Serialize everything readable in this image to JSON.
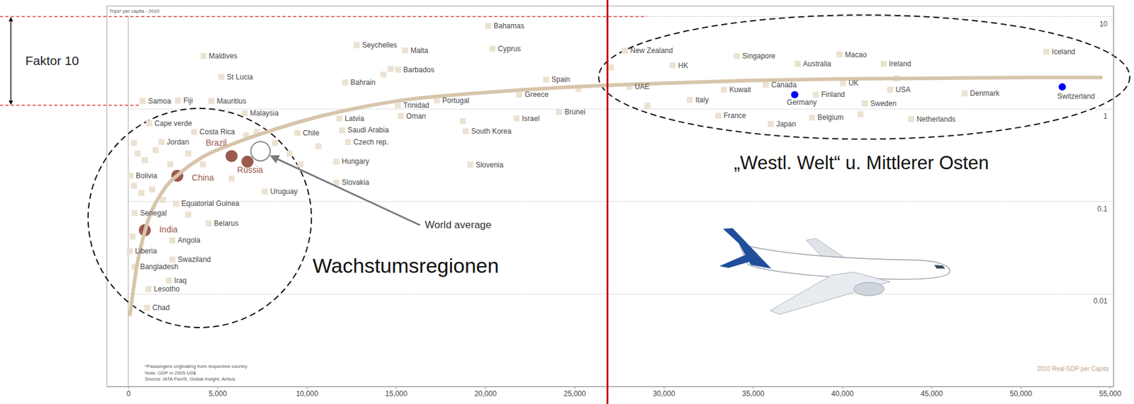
{
  "chart_data": {
    "type": "scatter",
    "title": "Trips* per capita - 2010",
    "x_label": "2010 Real GDP per Capita",
    "footnotes": [
      "*Passengers originating from respective country",
      "Note: GDP in 2005 US$",
      "Source: IATA PaxIS, Global Insight, Airbus"
    ],
    "log": "y",
    "grid": true,
    "xlim": [
      -1200,
      55200
    ],
    "ylim": [
      0.001,
      13
    ],
    "xticks": [
      0,
      {
        "value": 5000,
        "label": "5,000"
      },
      {
        "value": 10000,
        "label": "10,000"
      },
      {
        "value": 15000,
        "label": "15,000"
      },
      {
        "value": 20000,
        "label": "20,000"
      },
      {
        "value": 25000,
        "label": "25,000"
      },
      {
        "value": 30000,
        "label": "30,000"
      },
      {
        "value": 35000,
        "label": "35,000"
      },
      {
        "value": 40000,
        "label": "40,000"
      },
      {
        "value": 45000,
        "label": "45,000"
      },
      {
        "value": 50000,
        "label": "50,000"
      },
      {
        "value": 55000,
        "label": "55,000"
      }
    ],
    "yticks": [
      0.01,
      0.1,
      1,
      10
    ],
    "series": [
      {
        "type": "scatter",
        "marker": "square",
        "color": "#ece2d2",
        "labels": [
          "Maldives",
          "St Lucia",
          "Samoa",
          "Fiji",
          "Mauritius",
          "Malaysia",
          "Cape verde",
          "Costa Rica",
          "Jordan",
          "Chile",
          "Bolivia",
          "Equatorial Guinea",
          "Uruguay",
          "Senegal",
          "Belarus",
          "Liberia",
          "Angola",
          "Swaziland",
          "Bangladesh",
          "Iraq",
          "Lesotho",
          "Chad",
          "Bahamas",
          "Seychelles",
          "Malta",
          "Cyprus",
          "Barbados",
          "Bahrain",
          "Spain",
          "Greece",
          "Portugal",
          "Trinidad",
          "Oman",
          "Latvia",
          "Brunei",
          "Israel",
          "Saudi Arabia",
          "South Korea",
          "Czech rep.",
          "Hungary",
          "Slovenia",
          "Slovakia",
          "New Zealand",
          "HK",
          "UAE",
          "Italy",
          "Singapore",
          "Kuwait",
          "Canada",
          "France",
          "Japan",
          "Australia",
          "Macao",
          "Finland",
          "UK",
          "Belgium",
          "Ireland",
          "USA",
          "Sweden",
          "Netherlands",
          "Denmark",
          "Iceland",
          null,
          null,
          null,
          null,
          null,
          null,
          null,
          null,
          null,
          null,
          null,
          null,
          null,
          null,
          null,
          null,
          null,
          null,
          null,
          null,
          null,
          null,
          null,
          null,
          null,
          null,
          null,
          null
        ],
        "x": [
          4210,
          5220,
          810,
          2790,
          4660,
          6520,
          1170,
          3690,
          1860,
          9480,
          120,
          2670,
          7650,
          360,
          4500,
          80,
          2470,
          2470,
          360,
          2270,
          1130,
          1050,
          20170,
          12800,
          15510,
          20410,
          15110,
          12150,
          23410,
          21910,
          17290,
          15110,
          15270,
          11830,
          24140,
          21750,
          11990,
          18910,
          12310,
          11660,
          19160,
          11660,
          27820,
          30500,
          28070,
          31470,
          34100,
          33370,
          35720,
          33050,
          36000,
          37500,
          39850,
          38520,
          40050,
          38310,
          42320,
          42690,
          41270,
          43860,
          46860,
          51440,
          324,
          527,
          932,
          324,
          729,
          1337,
          1944,
          2349,
          1539,
          3362,
          4172,
          5792,
          6602,
          7209,
          8222,
          9032,
          9639,
          243,
          3362,
          10650,
          18750,
          25230,
          29080,
          41030,
          27050,
          14300,
          14700,
          43050
        ],
        "values": [
          3.75,
          2.23,
          1.22,
          1.24,
          1.22,
          0.9,
          0.7,
          0.565,
          0.44,
          0.55,
          0.19,
          0.095,
          0.128,
          0.075,
          0.058,
          0.029,
          0.038,
          0.0236,
          0.0197,
          0.014,
          0.0113,
          0.0071,
          7.9,
          4.9,
          4.3,
          4.5,
          2.67,
          1.94,
          2.08,
          1.43,
          1.24,
          1.09,
          0.84,
          0.79,
          0.93,
          0.79,
          0.59,
          0.575,
          0.44,
          0.27,
          0.25,
          0.16,
          4.3,
          2.97,
          1.74,
          1.26,
          3.75,
          1.62,
          1.83,
          0.85,
          0.69,
          3.08,
          3.88,
          1.43,
          1.9,
          0.81,
          3.08,
          1.62,
          1.15,
          0.78,
          1.48,
          4.17,
          0.43,
          0.33,
          0.28,
          0.148,
          0.124,
          0.135,
          0.104,
          0.253,
          0.36,
          0.33,
          0.253,
          0.177,
          0.52,
          0.565,
          0.43,
          0.33,
          0.253,
          0.042,
          0.072,
          0.395,
          0.74,
          1.65,
          1.09,
          0.88,
          2.82,
          2.36,
          2.72,
          2.15
        ]
      },
      {
        "type": "scatter",
        "marker": "circle",
        "color": "#9c5a4e",
        "labels": [
          "Brazil",
          "China",
          "Russia",
          "India"
        ],
        "x": [
          5790,
          2750,
          6680,
          930
        ],
        "values": [
          0.31,
          0.19,
          0.27,
          0.049
        ]
      },
      {
        "type": "scatter",
        "marker": "dot",
        "color": "#0000ff",
        "labels": [
          "Germany",
          "Switzerland"
        ],
        "x": [
          37340,
          52330
        ],
        "values": [
          1.43,
          1.74
        ]
      },
      {
        "type": "scatter",
        "marker": "open-circle",
        "color": "#888888",
        "x": [
          7410
        ],
        "values": [
          0.35
        ]
      },
      {
        "type": "line",
        "line_style": "solid",
        "color": "#d7c5ab",
        "x": [
          100,
          500,
          1000,
          2000,
          3000,
          4000,
          6000,
          8000,
          10000,
          12000,
          15000,
          20000,
          25000,
          30000,
          35000,
          40000,
          45000,
          50000,
          54500
        ],
        "values": [
          0.006,
          0.021,
          0.053,
          0.135,
          0.21,
          0.29,
          0.43,
          0.585,
          0.765,
          0.95,
          1.22,
          1.51,
          1.74,
          1.9,
          2.04,
          2.12,
          2.15,
          2.19,
          2.19
        ]
      }
    ],
    "annotations": {
      "factor": {
        "text": "Faktor 10",
        "y": [
          1.1,
          10
        ],
        "color": "#e8312f"
      },
      "divider": {
        "x": 26850,
        "color": "#c00000"
      },
      "world_average": {
        "text": "World average"
      },
      "regions": [
        {
          "text": "Wachstumsregionen"
        },
        {
          "text": "„Westl. Welt“ u. Mittlerer Osten"
        }
      ]
    }
  }
}
